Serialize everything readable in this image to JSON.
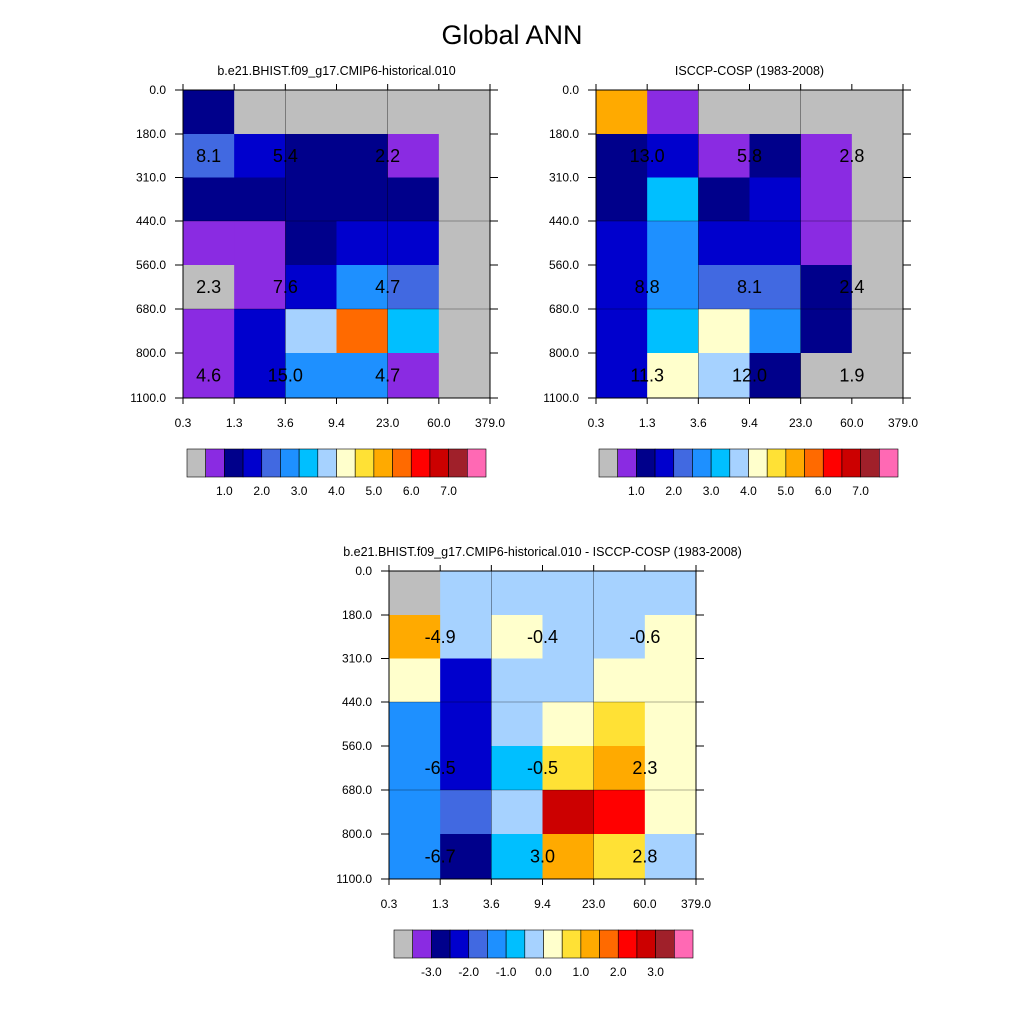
{
  "title": "Global ANN",
  "chart_data": [
    {
      "type": "heatmap",
      "title": "b.e21.BHIST.f09_g17.CMIP6-historical.010",
      "x_ticks": [
        "0.3",
        "1.3",
        "3.6",
        "9.4",
        "23.0",
        "60.0",
        "379.0"
      ],
      "y_ticks": [
        "0.0",
        "180.0",
        "310.0",
        "440.0",
        "560.0",
        "680.0",
        "800.0",
        "1100.0"
      ],
      "cell_colors": [
        [
          "#00008B",
          "#BEBEBE",
          "#BEBEBE",
          "#BEBEBE",
          "#BEBEBE",
          "#BEBEBE"
        ],
        [
          "#4169E1",
          "#0000CD",
          "#00008B",
          "#00008B",
          "#8A2BE2",
          "#BEBEBE"
        ],
        [
          "#00008B",
          "#00008B",
          "#00008B",
          "#00008B",
          "#00008B",
          "#BEBEBE"
        ],
        [
          "#8A2BE2",
          "#8A2BE2",
          "#00008B",
          "#0000CD",
          "#0000CD",
          "#BEBEBE"
        ],
        [
          "#BEBEBE",
          "#8A2BE2",
          "#0000CD",
          "#1E90FF",
          "#4169E1",
          "#BEBEBE"
        ],
        [
          "#8A2BE2",
          "#0000CD",
          "#A6D2FF",
          "#FF6A00",
          "#00BFFF",
          "#BEBEBE"
        ],
        [
          "#8A2BE2",
          "#0000CD",
          "#1E90FF",
          "#1E90FF",
          "#8A2BE2",
          "#BEBEBE"
        ]
      ],
      "annotations": [
        {
          "col": 0.5,
          "row": 1.5,
          "text": "8.1"
        },
        {
          "col": 2.0,
          "row": 1.5,
          "text": "5.4"
        },
        {
          "col": 4.0,
          "row": 1.5,
          "text": "2.2"
        },
        {
          "col": 0.5,
          "row": 4.0,
          "text": "2.3"
        },
        {
          "col": 2.0,
          "row": 4.0,
          "text": "7.6"
        },
        {
          "col": 4.0,
          "row": 4.0,
          "text": "4.7"
        },
        {
          "col": 0.5,
          "row": 6.0,
          "text": "4.6"
        },
        {
          "col": 2.0,
          "row": 6.0,
          "text": "15.0"
        },
        {
          "col": 4.0,
          "row": 6.0,
          "text": "4.7"
        }
      ],
      "colorbar": {
        "colors": [
          "#BEBEBE",
          "#8A2BE2",
          "#00008B",
          "#0000CD",
          "#4169E1",
          "#1E90FF",
          "#00BFFF",
          "#A6D2FF",
          "#FFFFCC",
          "#FFE135",
          "#FFAA00",
          "#FF6A00",
          "#FF0000",
          "#CC0000",
          "#A0202A",
          "#FF69B4"
        ],
        "labels": [
          "1.0",
          "2.0",
          "3.0",
          "4.0",
          "5.0",
          "6.0",
          "7.0"
        ]
      }
    },
    {
      "type": "heatmap",
      "title": "ISCCP-COSP (1983-2008)",
      "x_ticks": [
        "0.3",
        "1.3",
        "3.6",
        "9.4",
        "23.0",
        "60.0",
        "379.0"
      ],
      "y_ticks": [
        "0.0",
        "180.0",
        "310.0",
        "440.0",
        "560.0",
        "680.0",
        "800.0",
        "1100.0"
      ],
      "cell_colors": [
        [
          "#FFAA00",
          "#8A2BE2",
          "#BEBEBE",
          "#BEBEBE",
          "#BEBEBE",
          "#BEBEBE"
        ],
        [
          "#00008B",
          "#0000CD",
          "#8A2BE2",
          "#00008B",
          "#8A2BE2",
          "#BEBEBE"
        ],
        [
          "#00008B",
          "#00BFFF",
          "#00008B",
          "#0000CD",
          "#8A2BE2",
          "#BEBEBE"
        ],
        [
          "#0000CD",
          "#1E90FF",
          "#0000CD",
          "#0000CD",
          "#8A2BE2",
          "#BEBEBE"
        ],
        [
          "#0000CD",
          "#1E90FF",
          "#4169E1",
          "#4169E1",
          "#00008B",
          "#BEBEBE"
        ],
        [
          "#0000CD",
          "#00BFFF",
          "#FFFFCC",
          "#1E90FF",
          "#00008B",
          "#BEBEBE"
        ],
        [
          "#0000CD",
          "#FFFFCC",
          "#A6D2FF",
          "#00008B",
          "#BEBEBE",
          "#BEBEBE"
        ]
      ],
      "annotations": [
        {
          "col": 1.0,
          "row": 1.5,
          "text": "13.0"
        },
        {
          "col": 3.0,
          "row": 1.5,
          "text": "5.8"
        },
        {
          "col": 5.0,
          "row": 1.5,
          "text": "2.8"
        },
        {
          "col": 1.0,
          "row": 4.0,
          "text": "8.8"
        },
        {
          "col": 3.0,
          "row": 4.0,
          "text": "8.1"
        },
        {
          "col": 5.0,
          "row": 4.0,
          "text": "2.4"
        },
        {
          "col": 1.0,
          "row": 6.0,
          "text": "11.3"
        },
        {
          "col": 3.0,
          "row": 6.0,
          "text": "12.0"
        },
        {
          "col": 5.0,
          "row": 6.0,
          "text": "1.9"
        }
      ],
      "colorbar": {
        "colors": [
          "#BEBEBE",
          "#8A2BE2",
          "#00008B",
          "#0000CD",
          "#4169E1",
          "#1E90FF",
          "#00BFFF",
          "#A6D2FF",
          "#FFFFCC",
          "#FFE135",
          "#FFAA00",
          "#FF6A00",
          "#FF0000",
          "#CC0000",
          "#A0202A",
          "#FF69B4"
        ],
        "labels": [
          "1.0",
          "2.0",
          "3.0",
          "4.0",
          "5.0",
          "6.0",
          "7.0"
        ]
      }
    },
    {
      "type": "heatmap",
      "title": "b.e21.BHIST.f09_g17.CMIP6-historical.010 - ISCCP-COSP (1983-2008)",
      "x_ticks": [
        "0.3",
        "1.3",
        "3.6",
        "9.4",
        "23.0",
        "60.0",
        "379.0"
      ],
      "y_ticks": [
        "0.0",
        "180.0",
        "310.0",
        "440.0",
        "560.0",
        "680.0",
        "800.0",
        "1100.0"
      ],
      "cell_colors": [
        [
          "#BEBEBE",
          "#A6D2FF",
          "#A6D2FF",
          "#A6D2FF",
          "#A6D2FF",
          "#A6D2FF"
        ],
        [
          "#FFAA00",
          "#A6D2FF",
          "#FFFFCC",
          "#A6D2FF",
          "#A6D2FF",
          "#FFFFCC"
        ],
        [
          "#FFFFCC",
          "#0000CD",
          "#A6D2FF",
          "#A6D2FF",
          "#FFFFCC",
          "#FFFFCC"
        ],
        [
          "#1E90FF",
          "#0000CD",
          "#A6D2FF",
          "#FFFFCC",
          "#FFE135",
          "#FFFFCC"
        ],
        [
          "#1E90FF",
          "#0000CD",
          "#00BFFF",
          "#FFE135",
          "#FFAA00",
          "#FFFFCC"
        ],
        [
          "#1E90FF",
          "#4169E1",
          "#A6D2FF",
          "#CC0000",
          "#FF0000",
          "#FFFFCC"
        ],
        [
          "#1E90FF",
          "#00008B",
          "#00BFFF",
          "#FFAA00",
          "#FFE135",
          "#A6D2FF"
        ]
      ],
      "annotations": [
        {
          "col": 1.0,
          "row": 1.5,
          "text": "-4.9"
        },
        {
          "col": 3.0,
          "row": 1.5,
          "text": "-0.4"
        },
        {
          "col": 5.0,
          "row": 1.5,
          "text": "-0.6"
        },
        {
          "col": 1.0,
          "row": 4.0,
          "text": "-6.5"
        },
        {
          "col": 3.0,
          "row": 4.0,
          "text": "-0.5"
        },
        {
          "col": 5.0,
          "row": 4.0,
          "text": "2.3"
        },
        {
          "col": 1.0,
          "row": 6.0,
          "text": "-6.7"
        },
        {
          "col": 3.0,
          "row": 6.0,
          "text": "3.0"
        },
        {
          "col": 5.0,
          "row": 6.0,
          "text": "2.8"
        }
      ],
      "colorbar": {
        "colors": [
          "#BEBEBE",
          "#8A2BE2",
          "#00008B",
          "#0000CD",
          "#4169E1",
          "#1E90FF",
          "#00BFFF",
          "#A6D2FF",
          "#FFFFCC",
          "#FFE135",
          "#FFAA00",
          "#FF6A00",
          "#FF0000",
          "#CC0000",
          "#A0202A",
          "#FF69B4"
        ],
        "labels": [
          "-3.0",
          "-2.0",
          "-1.0",
          "0.0",
          "1.0",
          "2.0",
          "3.0"
        ]
      }
    }
  ]
}
